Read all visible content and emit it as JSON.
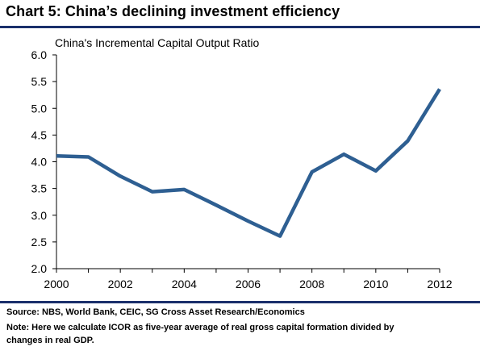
{
  "header": {
    "title": "Chart 5: China’s declining investment efficiency"
  },
  "chart_data": {
    "type": "line",
    "subtitle": "China's Incremental Capital Output Ratio",
    "x": [
      2000,
      2001,
      2002,
      2003,
      2004,
      2005,
      2006,
      2007,
      2008,
      2009,
      2010,
      2011,
      2012
    ],
    "series": [
      {
        "values": [
          4.11,
          4.09,
          3.73,
          3.44,
          3.48,
          3.19,
          2.89,
          2.61,
          3.81,
          4.14,
          3.83,
          4.39,
          5.36
        ]
      }
    ],
    "xticks": [
      "2000",
      "2002",
      "2004",
      "2006",
      "2008",
      "2010",
      "2012"
    ],
    "yticks": [
      "6.0",
      "5.5",
      "5.0",
      "4.5",
      "4.0",
      "3.5",
      "3.0",
      "2.5",
      "2.0"
    ],
    "xlim": [
      2000,
      2012
    ],
    "ylim": [
      2.0,
      6.0
    ],
    "grid": false,
    "line_color": "#2e5f92"
  },
  "footer": {
    "source": "Source: NBS, World Bank, CEIC, SG Cross Asset Research/Economics",
    "note_line1": "Note: Here we calculate ICOR as five-year average of real gross capital formation divided by",
    "note_line2": "changes in real GDP."
  }
}
